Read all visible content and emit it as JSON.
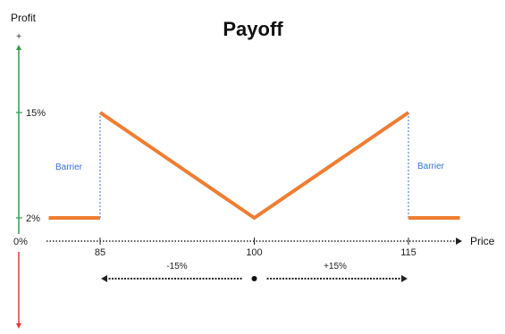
{
  "chart_data": {
    "type": "line",
    "title": "Payoff",
    "ylabel": "Profit",
    "xlabel": "Price",
    "y_top_sign": "+",
    "x_ticks": [
      {
        "value": 85,
        "label": "85"
      },
      {
        "value": 100,
        "label": "100"
      },
      {
        "value": 115,
        "label": "115"
      }
    ],
    "y_ticks": [
      {
        "value": 15,
        "label": "15%"
      },
      {
        "value": 2,
        "label": "2%"
      },
      {
        "value": 0,
        "label": "0%"
      }
    ],
    "series": [
      {
        "color": "#ef7d31",
        "segments": [
          [
            {
              "x": 80,
              "y": 2
            },
            {
              "x": 85,
              "y": 2
            }
          ],
          [
            {
              "x": 85,
              "y": 15
            },
            {
              "x": 100,
              "y": 2
            },
            {
              "x": 115,
              "y": 15
            }
          ],
          [
            {
              "x": 115,
              "y": 2
            },
            {
              "x": 120,
              "y": 2
            }
          ]
        ]
      }
    ],
    "barriers": [
      {
        "x": 85,
        "label": "Barrier"
      },
      {
        "x": 115,
        "label": "Barrier"
      }
    ],
    "range_annotations": [
      {
        "from": 100,
        "to": 85,
        "label": "-15%"
      },
      {
        "from": 100,
        "to": 115,
        "label": "+15%"
      }
    ],
    "colors": {
      "payoff": "#ef7d31",
      "profit_axis_up": "#2e9e4a",
      "profit_axis_down": "#e53935",
      "barrier": "#3a6fd8",
      "axis": "#222222"
    },
    "legend": "none",
    "grid": false
  }
}
